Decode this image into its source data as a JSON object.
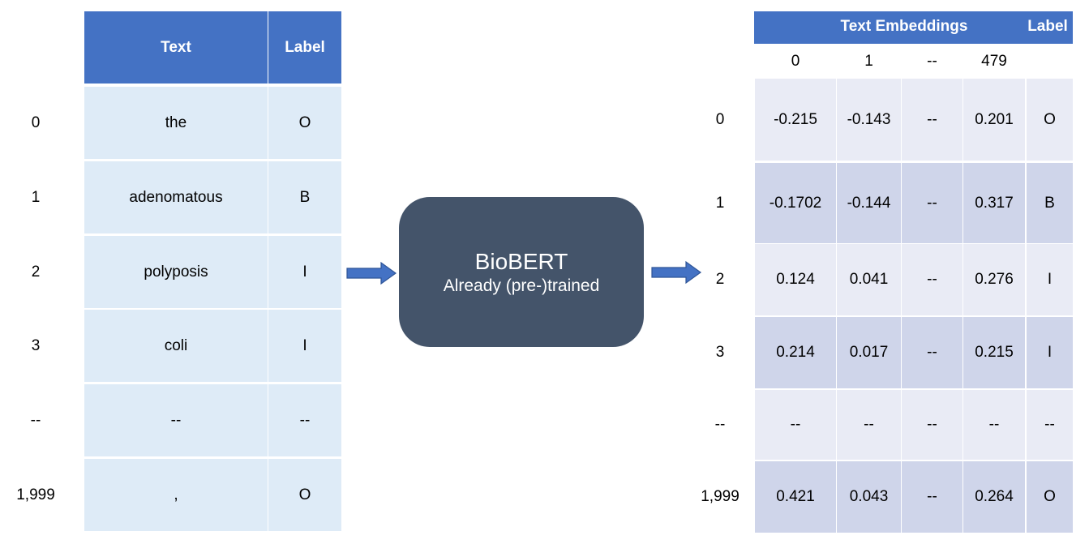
{
  "left_table": {
    "headers": [
      "Text",
      "Label"
    ],
    "rows": [
      {
        "index": "0",
        "text": "the",
        "label": "O"
      },
      {
        "index": "1",
        "text": "adenomatous",
        "label": "B"
      },
      {
        "index": "2",
        "text": "polyposis",
        "label": "I"
      },
      {
        "index": "3",
        "text": "coli",
        "label": "I"
      },
      {
        "index": "--",
        "text": "--",
        "label": "--"
      },
      {
        "index": "1,999",
        "text": ",",
        "label": "O"
      }
    ]
  },
  "model": {
    "name": "BioBERT",
    "subtitle": "Already (pre-)trained"
  },
  "right_table": {
    "group_header": "Text Embeddings",
    "label_header": "Label",
    "columns": [
      "0",
      "1",
      "--",
      "479"
    ],
    "rows": [
      {
        "index": "0",
        "values": [
          "-0.215",
          "-0.143",
          "--",
          "0.201"
        ],
        "label": "O"
      },
      {
        "index": "1",
        "values": [
          "-0.1702",
          "-0.144",
          "--",
          "0.317"
        ],
        "label": "B"
      },
      {
        "index": "2",
        "values": [
          "0.124",
          "0.041",
          "--",
          "0.276"
        ],
        "label": "I"
      },
      {
        "index": "3",
        "values": [
          "0.214",
          "0.017",
          "--",
          "0.215"
        ],
        "label": "I"
      },
      {
        "index": "--",
        "values": [
          "--",
          "--",
          "--",
          "--"
        ],
        "label": "--"
      },
      {
        "index": "1,999",
        "values": [
          "0.421",
          "0.043",
          "--",
          "0.264"
        ],
        "label": "O"
      }
    ]
  },
  "colors": {
    "header_blue": "#4472c4",
    "left_cell": "#deebf7",
    "right_cell_light": "#e9ebf5",
    "right_cell_dark": "#cfd5ea",
    "model_fill": "#44546a",
    "arrow": "#4472c4"
  }
}
